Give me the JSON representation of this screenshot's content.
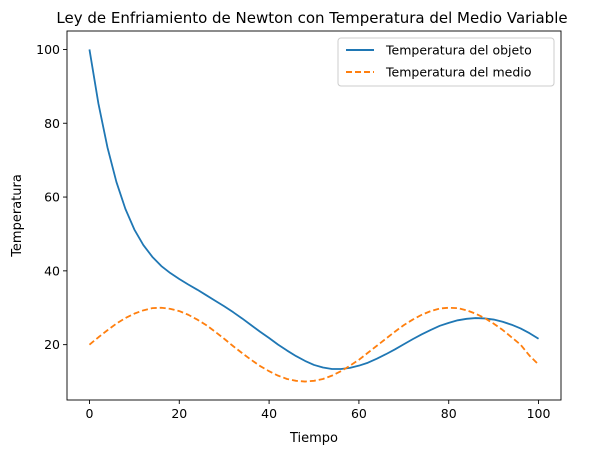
{
  "chart_data": {
    "type": "line",
    "title": "Ley de Enfriamiento de Newton con Temperatura del Medio Variable",
    "xlabel": "Tiempo",
    "ylabel": "Temperatura",
    "xlim": [
      -5,
      105
    ],
    "ylim": [
      5,
      105
    ],
    "xticks": [
      0,
      20,
      40,
      60,
      80,
      100
    ],
    "yticks": [
      20,
      40,
      60,
      80,
      100
    ],
    "grid": false,
    "legend_position": "upper-right",
    "series": [
      {
        "name": "Temperatura del objeto",
        "color": "#1f77b4",
        "dash": "solid",
        "x": [
          0,
          2,
          4,
          6,
          8,
          10,
          12,
          14,
          16,
          18,
          20,
          22,
          24,
          26,
          28,
          30,
          32,
          34,
          36,
          38,
          40,
          42,
          44,
          46,
          48,
          50,
          52,
          54,
          56,
          58,
          60,
          62,
          64,
          66,
          68,
          70,
          72,
          74,
          76,
          78,
          80,
          82,
          84,
          86,
          88,
          90,
          92,
          94,
          96,
          98,
          100
        ],
        "y": [
          100,
          85.3,
          73.5,
          64.1,
          56.8,
          51.2,
          47.0,
          43.8,
          41.3,
          39.4,
          37.8,
          36.3,
          34.9,
          33.4,
          31.9,
          30.4,
          28.8,
          27.1,
          25.3,
          23.5,
          21.8,
          20.0,
          18.4,
          16.9,
          15.6,
          14.5,
          13.8,
          13.4,
          13.4,
          13.7,
          14.3,
          15.1,
          16.2,
          17.4,
          18.7,
          20.1,
          21.5,
          22.8,
          24.0,
          25.1,
          25.9,
          26.6,
          27.0,
          27.2,
          27.1,
          26.8,
          26.2,
          25.4,
          24.4,
          23.1,
          21.6
        ]
      },
      {
        "name": "Temperatura del medio",
        "color": "#ff7f0e",
        "dash": "dashed",
        "x": [
          0,
          2,
          4,
          6,
          8,
          10,
          12,
          14,
          16,
          18,
          20,
          22,
          24,
          26,
          28,
          30,
          32,
          34,
          36,
          38,
          40,
          42,
          44,
          46,
          48,
          50,
          52,
          54,
          56,
          58,
          60,
          62,
          64,
          66,
          68,
          70,
          72,
          74,
          76,
          78,
          80,
          82,
          84,
          86,
          88,
          90,
          92,
          94,
          96,
          98,
          100
        ],
        "y": [
          20.0,
          22.0,
          23.9,
          25.7,
          27.2,
          28.4,
          29.3,
          29.9,
          30.0,
          29.7,
          29.1,
          28.1,
          26.8,
          25.3,
          23.5,
          21.6,
          19.6,
          17.7,
          15.9,
          14.2,
          12.8,
          11.6,
          10.7,
          10.2,
          10.0,
          10.2,
          10.7,
          11.6,
          12.8,
          14.3,
          15.9,
          17.8,
          19.7,
          21.6,
          23.5,
          25.3,
          26.8,
          28.1,
          29.1,
          29.8,
          30.0,
          29.9,
          29.3,
          28.4,
          27.2,
          25.7,
          24.0,
          22.0,
          20.0,
          17.0,
          14.6
        ]
      }
    ]
  }
}
